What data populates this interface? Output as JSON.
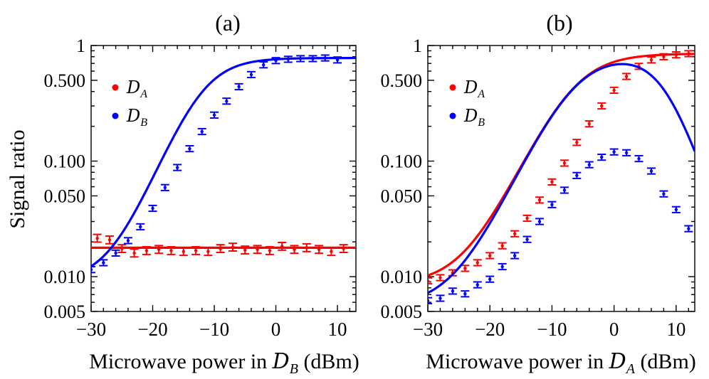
{
  "ylabel": "Signal ratio",
  "chart_data": [
    {
      "type": "scatter",
      "title": "(a)",
      "xlabel_prefix": "Microwave power in ",
      "xlabel_symbol": "D",
      "xlabel_sub": "B",
      "xlabel_suffix": " (dBm)",
      "ylabel": "Signal ratio",
      "yscale": "log",
      "xlim": [
        -30,
        13
      ],
      "ylim": [
        0.005,
        1
      ],
      "xticks": [
        -30,
        -20,
        -10,
        0,
        10
      ],
      "xtick_labels": [
        "−30",
        "−20",
        "−10",
        "0",
        "10"
      ],
      "yticks": [
        0.005,
        0.01,
        0.05,
        0.1,
        0.5,
        1
      ],
      "ytick_labels": [
        "0.005",
        "0.010",
        "0.050",
        "0.100",
        "0.500",
        "1"
      ],
      "legend_position": "top-left",
      "series": [
        {
          "name": "D_A",
          "legend_symbol": "D",
          "legend_sub": "A",
          "color": "#ff0000",
          "x": [
            -29,
            -27,
            -25,
            -23,
            -21,
            -19,
            -17,
            -15,
            -13,
            -11,
            -9,
            -7,
            -5,
            -3,
            -1,
            1,
            3,
            5,
            7,
            9,
            11
          ],
          "y": [
            0.0215,
            0.0208,
            0.0175,
            0.016,
            0.0168,
            0.0172,
            0.0168,
            0.0165,
            0.0168,
            0.0165,
            0.0175,
            0.018,
            0.017,
            0.0172,
            0.0168,
            0.0183,
            0.0172,
            0.0178,
            0.0172,
            0.0165,
            0.0175
          ],
          "err": [
            0.08,
            0.08,
            0.08,
            0.08,
            0.08,
            0.08,
            0.08,
            0.08,
            0.08,
            0.08,
            0.08,
            0.08,
            0.08,
            0.08,
            0.08,
            0.08,
            0.08,
            0.08,
            0.08,
            0.08,
            0.08
          ],
          "fit": {
            "model": "constant",
            "value": 0.0178
          }
        },
        {
          "name": "D_B",
          "legend_symbol": "D",
          "legend_sub": "B",
          "color": "#0000ff",
          "x": [
            -30,
            -28,
            -26,
            -24,
            -22,
            -20,
            -18,
            -16,
            -14,
            -12,
            -10,
            -8,
            -6,
            -4,
            -2,
            0,
            2,
            4,
            6,
            8,
            10
          ],
          "y": [
            0.0115,
            0.0132,
            0.016,
            0.0205,
            0.027,
            0.039,
            0.059,
            0.088,
            0.128,
            0.18,
            0.25,
            0.33,
            0.44,
            0.56,
            0.68,
            0.74,
            0.76,
            0.77,
            0.77,
            0.78,
            0.75
          ],
          "err": [
            0.06,
            0.06,
            0.06,
            0.06,
            0.06,
            0.06,
            0.06,
            0.06,
            0.06,
            0.06,
            0.06,
            0.06,
            0.06,
            0.06,
            0.06,
            0.06,
            0.06,
            0.06,
            0.06,
            0.06,
            0.06
          ],
          "fit": {
            "model": "sigmoid",
            "min": 0.009,
            "max": 0.78,
            "x0": -12,
            "w": 3.3
          }
        }
      ]
    },
    {
      "type": "scatter",
      "title": "(b)",
      "xlabel_prefix": "Microwave power in ",
      "xlabel_symbol": "D",
      "xlabel_sub": "A",
      "xlabel_suffix": " (dBm)",
      "ylabel": "Signal ratio",
      "yscale": "log",
      "xlim": [
        -30,
        13
      ],
      "ylim": [
        0.005,
        1
      ],
      "xticks": [
        -30,
        -20,
        -10,
        0,
        10
      ],
      "xtick_labels": [
        "−30",
        "−20",
        "−10",
        "0",
        "10"
      ],
      "yticks": [
        0.005,
        0.01,
        0.05,
        0.1,
        0.5,
        1
      ],
      "ytick_labels": [
        "0.005",
        "0.010",
        "0.050",
        "0.100",
        "0.500",
        "1"
      ],
      "legend_position": "top-left",
      "series": [
        {
          "name": "D_A",
          "legend_symbol": "D",
          "legend_sub": "A",
          "color": "#ff0000",
          "x": [
            -30,
            -28,
            -26,
            -24,
            -22,
            -20,
            -18,
            -16,
            -14,
            -12,
            -10,
            -8,
            -6,
            -4,
            -2,
            0,
            2,
            4,
            6,
            8,
            10,
            12
          ],
          "y": [
            0.0092,
            0.0098,
            0.0108,
            0.0118,
            0.0132,
            0.0152,
            0.0185,
            0.0235,
            0.032,
            0.046,
            0.066,
            0.096,
            0.145,
            0.21,
            0.3,
            0.41,
            0.54,
            0.66,
            0.75,
            0.8,
            0.83,
            0.85
          ],
          "err": [
            0.06,
            0.06,
            0.06,
            0.06,
            0.06,
            0.06,
            0.06,
            0.06,
            0.06,
            0.06,
            0.06,
            0.06,
            0.06,
            0.06,
            0.06,
            0.06,
            0.06,
            0.06,
            0.06,
            0.06,
            0.06,
            0.06
          ],
          "fit": {
            "model": "sigmoid",
            "min": 0.0085,
            "max": 0.85,
            "x0": -6.5,
            "w": 3.8
          }
        },
        {
          "name": "D_B",
          "legend_symbol": "D",
          "legend_sub": "B",
          "color": "#0000ff",
          "x": [
            -30,
            -28,
            -26,
            -24,
            -22,
            -20,
            -18,
            -16,
            -14,
            -12,
            -10,
            -8,
            -6,
            -4,
            -2,
            0,
            2,
            4,
            6,
            8,
            10,
            12
          ],
          "y": [
            0.0062,
            0.0065,
            0.0075,
            0.0071,
            0.0085,
            0.0095,
            0.0122,
            0.0152,
            0.021,
            0.03,
            0.042,
            0.056,
            0.075,
            0.093,
            0.108,
            0.12,
            0.118,
            0.105,
            0.082,
            0.052,
            0.038,
            0.026
          ],
          "err": [
            0.06,
            0.06,
            0.06,
            0.06,
            0.06,
            0.06,
            0.06,
            0.06,
            0.06,
            0.06,
            0.06,
            0.06,
            0.06,
            0.06,
            0.06,
            0.06,
            0.06,
            0.06,
            0.06,
            0.06,
            0.06,
            0.06
          ],
          "fit": {
            "model": "peak",
            "min": 0.0055,
            "max": 0.85,
            "x0": -6.5,
            "w": 3.8,
            "decay_x0": 8,
            "decay_w": 2.8
          }
        }
      ]
    }
  ]
}
